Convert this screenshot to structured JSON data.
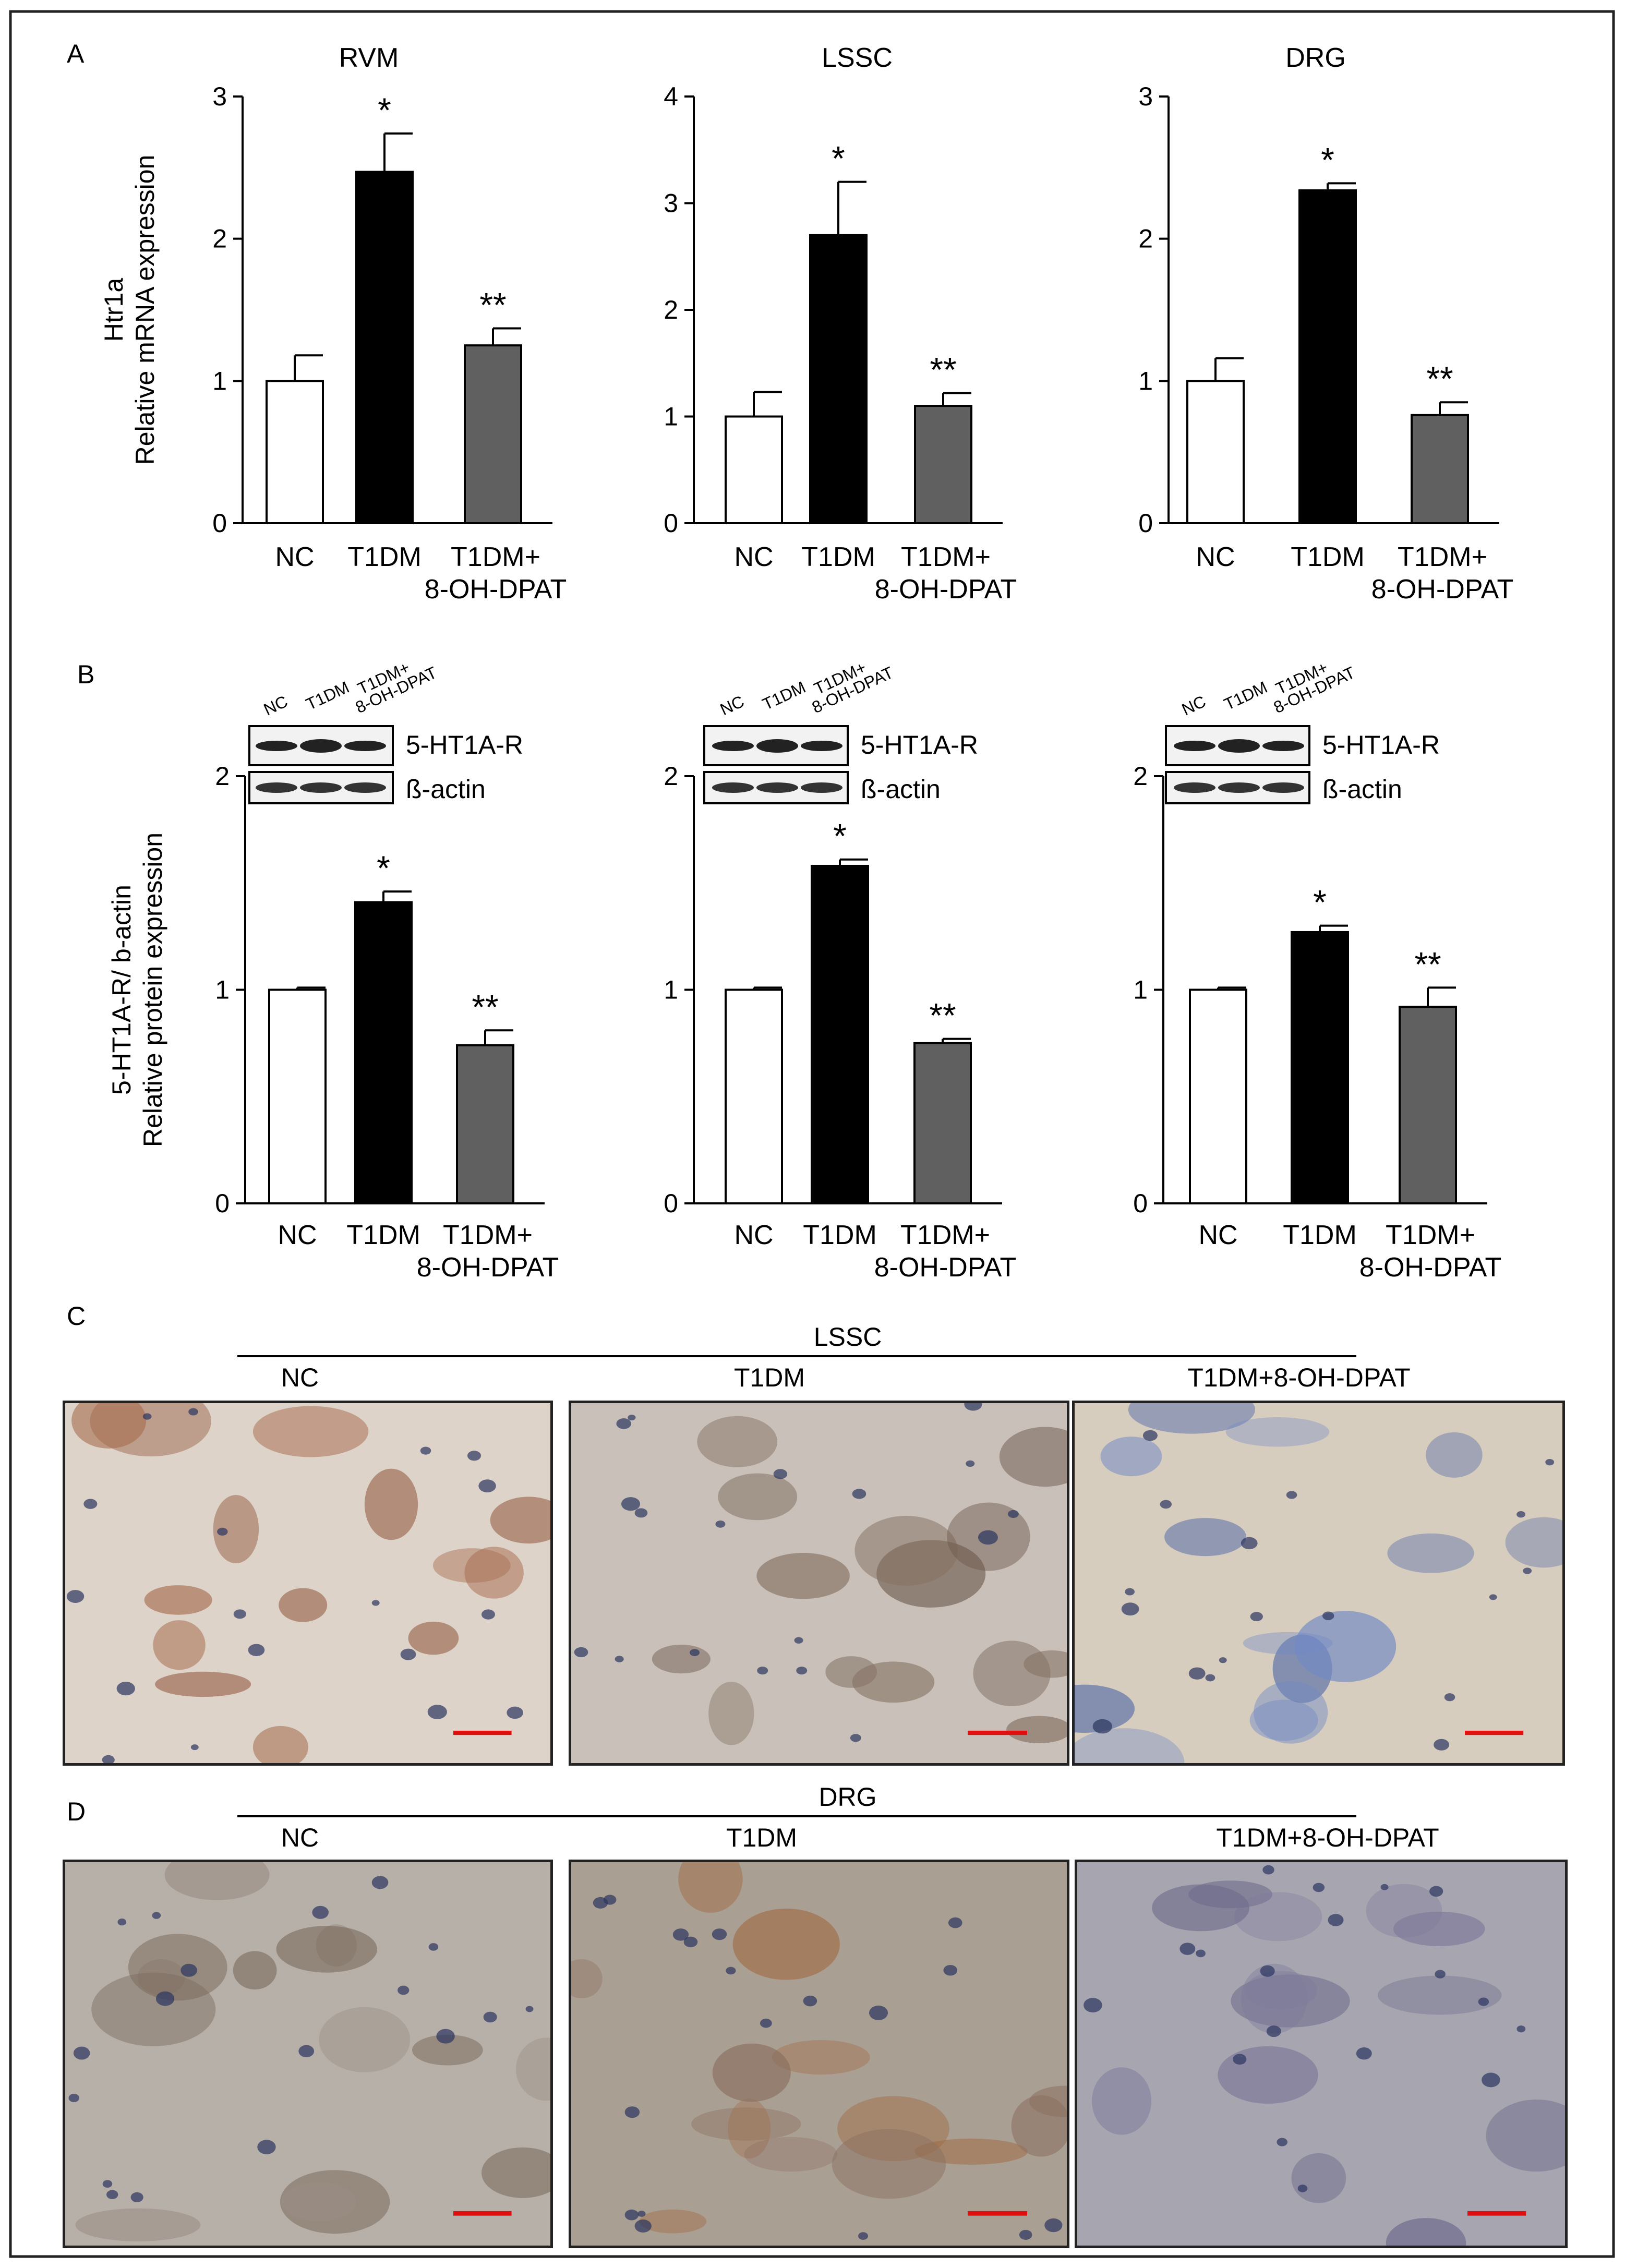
{
  "panel_letters": [
    "A",
    "B",
    "C",
    "D"
  ],
  "colors": {
    "NC": "#ffffff",
    "T1DM": "#000000",
    "T1DM+8-OH-DPAT": "#606060"
  },
  "chart_data": [
    {
      "panel": "A",
      "type": "bar",
      "title": "RVM",
      "ylabel_lines": [
        "Htr1a",
        "Relative mRNA expression"
      ],
      "categories": [
        [
          "NC"
        ],
        [
          "T1DM"
        ],
        [
          "T1DM+",
          "8-OH-DPAT"
        ]
      ],
      "values": [
        1.0,
        2.47,
        1.25
      ],
      "errors": [
        0.18,
        0.27,
        0.12
      ],
      "sig": [
        "",
        "*",
        "**"
      ],
      "ylim": [
        0,
        3
      ],
      "yticks": [
        0,
        1,
        2,
        3
      ]
    },
    {
      "panel": "A",
      "type": "bar",
      "title": "LSSC",
      "ylabel_lines": [],
      "categories": [
        [
          "NC"
        ],
        [
          "T1DM"
        ],
        [
          "T1DM+",
          "8-OH-DPAT"
        ]
      ],
      "values": [
        1.0,
        2.7,
        1.1
      ],
      "errors": [
        0.23,
        0.5,
        0.12
      ],
      "sig": [
        "",
        "*",
        "**"
      ],
      "ylim": [
        0,
        4
      ],
      "yticks": [
        0,
        1,
        2,
        3,
        4
      ]
    },
    {
      "panel": "A",
      "type": "bar",
      "title": "DRG",
      "ylabel_lines": [],
      "categories": [
        [
          "NC"
        ],
        [
          "T1DM"
        ],
        [
          "T1DM+",
          "8-OH-DPAT"
        ]
      ],
      "values": [
        1.0,
        2.34,
        0.76
      ],
      "errors": [
        0.16,
        0.05,
        0.09
      ],
      "sig": [
        "",
        "*",
        "**"
      ],
      "ylim": [
        0,
        3
      ],
      "yticks": [
        0,
        1,
        2,
        3
      ]
    },
    {
      "panel": "B",
      "type": "bar",
      "title": "",
      "ylabel_lines": [
        "5-HT1A-R/ b-actin",
        "Relative protein expression"
      ],
      "categories": [
        [
          "NC"
        ],
        [
          "T1DM"
        ],
        [
          "T1DM+",
          "8-OH-DPAT"
        ]
      ],
      "values": [
        1.0,
        1.41,
        0.74
      ],
      "errors": [
        0.01,
        0.05,
        0.07
      ],
      "sig": [
        "",
        "*",
        "**"
      ],
      "ylim": [
        0,
        2
      ],
      "yticks": [
        0,
        1,
        2
      ]
    },
    {
      "panel": "B",
      "type": "bar",
      "title": "",
      "ylabel_lines": [],
      "categories": [
        [
          "NC"
        ],
        [
          "T1DM"
        ],
        [
          "T1DM+",
          "8-OH-DPAT"
        ]
      ],
      "values": [
        1.0,
        1.58,
        0.75
      ],
      "errors": [
        0.01,
        0.03,
        0.02
      ],
      "sig": [
        "",
        "*",
        "**"
      ],
      "ylim": [
        0,
        2
      ],
      "yticks": [
        0,
        1,
        2
      ]
    },
    {
      "panel": "B",
      "type": "bar",
      "title": "",
      "ylabel_lines": [],
      "categories": [
        [
          "NC"
        ],
        [
          "T1DM"
        ],
        [
          "T1DM+",
          "8-OH-DPAT"
        ]
      ],
      "values": [
        1.0,
        1.27,
        0.92
      ],
      "errors": [
        0.01,
        0.03,
        0.09
      ],
      "sig": [
        "",
        "*",
        "**"
      ],
      "ylim": [
        0,
        2
      ],
      "yticks": [
        0,
        1,
        2
      ]
    }
  ],
  "western_blot": {
    "lane_labels": [
      "NC",
      "T1DM",
      "T1DM+",
      "8-OH-DPAT"
    ],
    "band_labels": [
      "5-HT1A-R",
      "ß-actin"
    ]
  },
  "panel_C": {
    "region": "LSSC",
    "groups": [
      "NC",
      "T1DM",
      "T1DM+8-OH-DPAT"
    ]
  },
  "panel_D": {
    "region": "DRG",
    "groups": [
      "NC",
      "T1DM",
      "T1DM+8-OH-DPAT"
    ]
  }
}
